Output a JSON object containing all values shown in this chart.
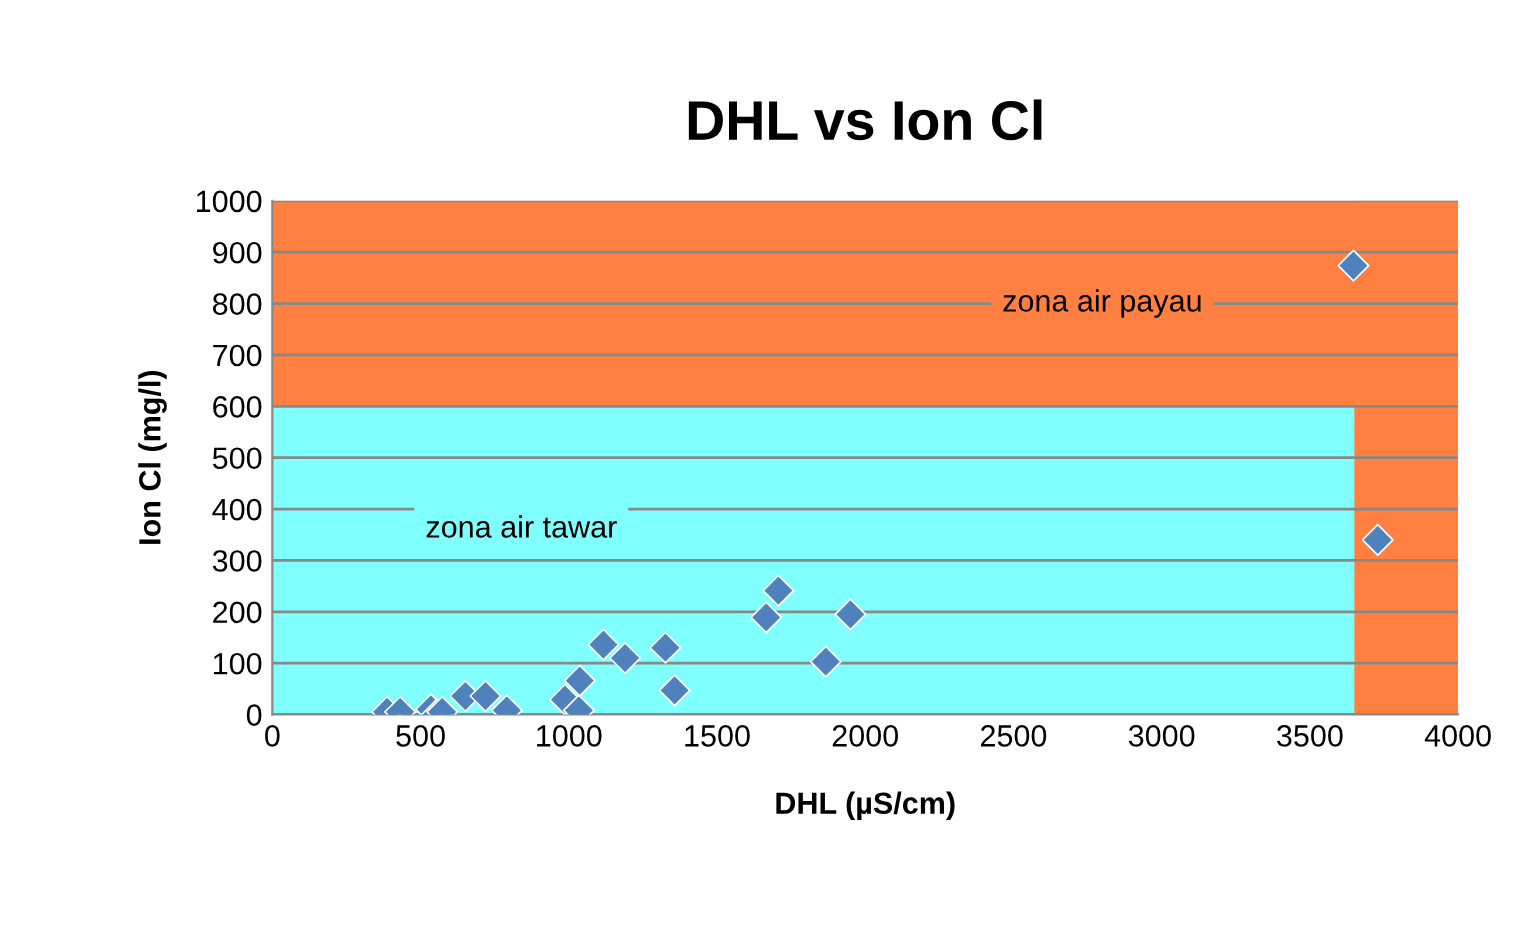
{
  "chart_data": {
    "type": "scatter",
    "title": "DHL vs Ion Cl",
    "xlabel": "DHL (µS/cm)",
    "ylabel": "Ion Cl (mg/l)",
    "x": [
      387,
      431,
      535,
      555,
      573,
      651,
      719,
      791,
      987,
      1034,
      1037,
      1117,
      1190,
      1326,
      1357,
      1666,
      1707,
      1867,
      1950,
      3647,
      3729
    ],
    "series": [
      {
        "color": "#4f81bd",
        "values": [
          5,
          5,
          10,
          0,
          5,
          36,
          36,
          8,
          29,
          8,
          66,
          136,
          110,
          130,
          47,
          189,
          241,
          103,
          195,
          874,
          340
        ]
      }
    ],
    "xlim": [
      0,
      4000
    ],
    "xticks": [
      0,
      500,
      1000,
      1500,
      2000,
      2500,
      3000,
      3500,
      4000
    ],
    "ylim": [
      0,
      1000
    ],
    "yticks": [
      0,
      100,
      200,
      300,
      400,
      500,
      600,
      700,
      800,
      900,
      1000
    ],
    "grid": "y",
    "marker": "diamond",
    "legend": false,
    "bands": [
      {
        "axis": "y",
        "from": 600,
        "to": 1000,
        "label": "zona air payau",
        "color": "#ff8040"
      },
      {
        "axis": "y",
        "from": 0,
        "to": 600,
        "label": "zona air tawar",
        "color": "#80ffff"
      },
      {
        "axis": "x",
        "from": 3650,
        "to": 4000,
        "color": "#ff8040"
      }
    ]
  }
}
